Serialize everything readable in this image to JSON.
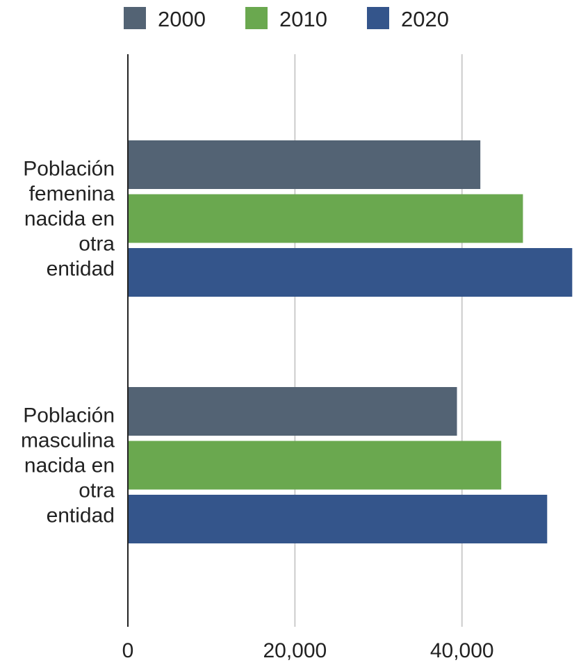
{
  "chart_data": {
    "type": "bar",
    "orientation": "horizontal",
    "categories": [
      [
        "Población",
        "femenina",
        "nacida en",
        "otra",
        "entidad"
      ],
      [
        "Población",
        "masculina",
        "nacida en",
        "otra",
        "entidad"
      ]
    ],
    "series": [
      {
        "name": "2000",
        "color": "#536374",
        "values": [
          42200,
          39400
        ]
      },
      {
        "name": "2010",
        "color": "#6aa84f",
        "values": [
          47300,
          44700
        ]
      },
      {
        "name": "2020",
        "color": "#34558b",
        "values": [
          53200,
          50200
        ]
      }
    ],
    "xlim": [
      0,
      55000
    ],
    "x_ticks": [
      0,
      20000,
      40000
    ],
    "x_tick_labels": [
      "0",
      "20,000",
      "40,000"
    ],
    "grid": "vertical",
    "legend_position": "top"
  },
  "colors": {
    "grid": "#cccccc",
    "axis": "#222222"
  }
}
